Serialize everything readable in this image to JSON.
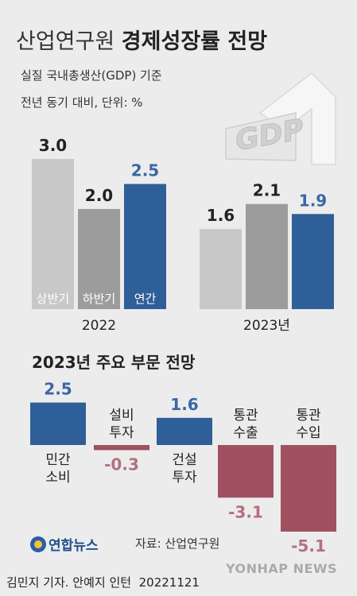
{
  "header": {
    "title_light": "산업연구원",
    "title_bold": "경제성장률 전망",
    "subtitle1": "실질 국내총생산(GDP) 기준",
    "subtitle2": "전년 동기 대비, 단위: %"
  },
  "decor": {
    "gdp_text": "GDP"
  },
  "section2_title": "2023년 주요 부문 전망",
  "source": "자료: 산업연구원",
  "logo": "연합뉴스",
  "byline": "김민지 기자. 안예지 인턴",
  "date": "20221121",
  "watermark": "YONHAP NEWS",
  "colors": {
    "first_half": "#c8c8c8",
    "second_half": "#9c9c9c",
    "annual": "#2f5f98",
    "negative": "#a0505f",
    "negative_label": "#b46f80",
    "positive_label": "#3a66a8"
  },
  "chart_data": [
    {
      "type": "bar",
      "categories": [
        "2022",
        "2023년"
      ],
      "series": [
        {
          "name": "상반기",
          "values": [
            3.0,
            1.6
          ]
        },
        {
          "name": "하반기",
          "values": [
            2.0,
            2.1
          ]
        },
        {
          "name": "연간",
          "values": [
            2.5,
            1.9
          ]
        }
      ],
      "value_labels": [
        [
          "3.0",
          "2.0",
          "2.5"
        ],
        [
          "1.6",
          "2.1",
          "1.9"
        ]
      ],
      "ylim": [
        0,
        3.0
      ]
    },
    {
      "type": "bar",
      "title": "2023년 주요 부문 전망",
      "categories": [
        "민간 소비",
        "설비 투자",
        "건설 투자",
        "통관 수출",
        "통관 수입"
      ],
      "category_lines": [
        [
          "민간",
          "소비"
        ],
        [
          "설비",
          "투자"
        ],
        [
          "건설",
          "투자"
        ],
        [
          "통관",
          "수출"
        ],
        [
          "통관",
          "수입"
        ]
      ],
      "values": [
        2.5,
        -0.3,
        1.6,
        -3.1,
        -5.1
      ],
      "value_labels": [
        "2.5",
        "-0.3",
        "1.6",
        "-3.1",
        "-5.1"
      ]
    }
  ]
}
